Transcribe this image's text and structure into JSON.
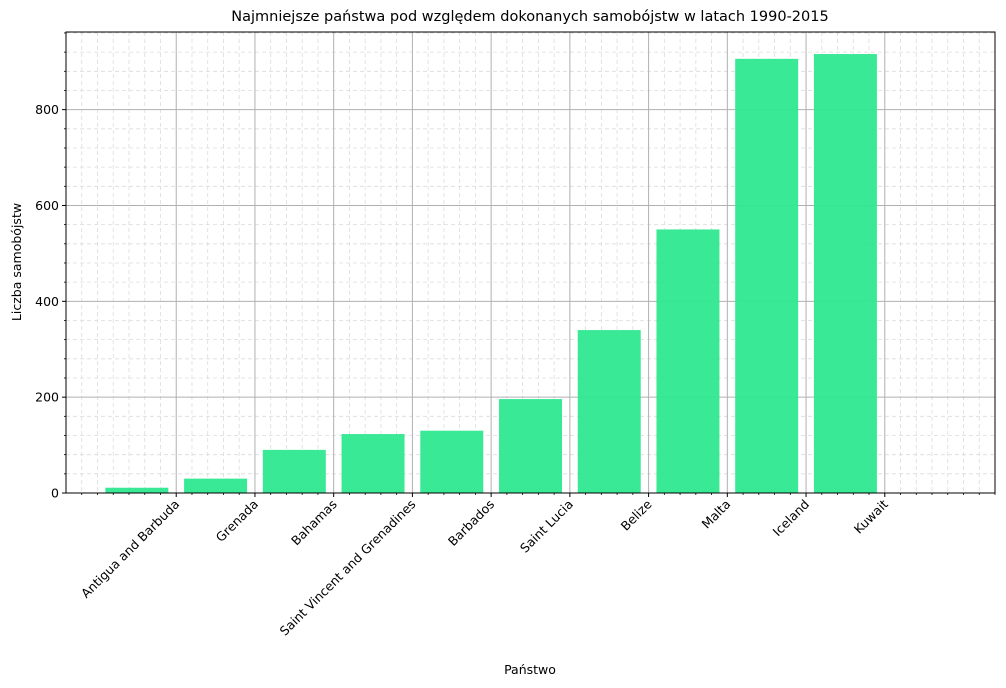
{
  "chart_data": {
    "type": "bar",
    "title": "Najmniejsze państwa pod względem dokonanych samobójstw w latach 1990-2015",
    "xlabel": "Państwo",
    "ylabel": "Liczba samobójstw",
    "categories": [
      "Antigua and Barbuda",
      "Grenada",
      "Bahamas",
      "Saint Vincent and Grenadines",
      "Barbados",
      "Saint Lucia",
      "Belize",
      "Malta",
      "Iceland",
      "Kuwait"
    ],
    "values": [
      11,
      30,
      90,
      123,
      130,
      196,
      340,
      550,
      906,
      916
    ],
    "yticks": [
      "0",
      "200",
      "400",
      "600",
      "800"
    ],
    "ylim": [
      0,
      962
    ],
    "bar_color": "#2ee88f",
    "grid": "major solid, minor dashed",
    "legend": "none"
  }
}
